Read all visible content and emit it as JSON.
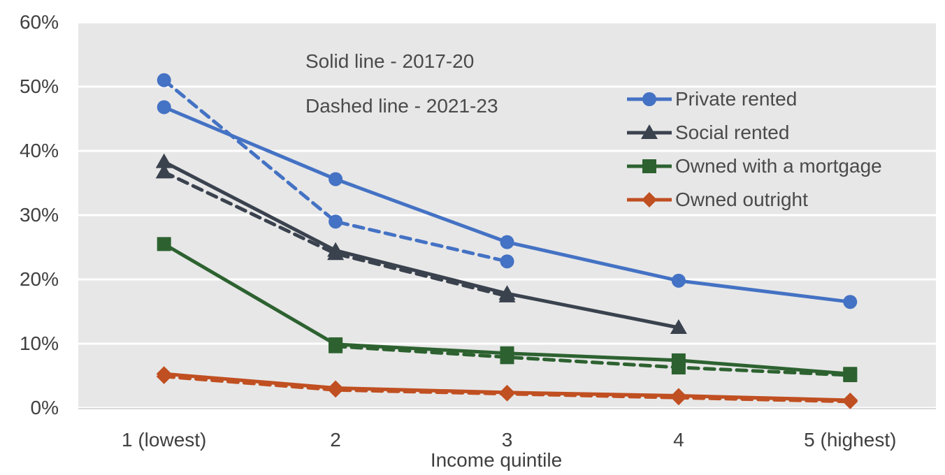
{
  "colors": {
    "plot_bg": "#E7E7E7",
    "gridline": "#FFFFFF",
    "axis_line": "#D9D9D9",
    "text": "#404040"
  },
  "chart_data": {
    "type": "line",
    "title": "",
    "xlabel": "Income quintile",
    "ylabel": "",
    "ylim": [
      0,
      60
    ],
    "ytick_step": 10,
    "ytick_labels": [
      "0%",
      "10%",
      "20%",
      "30%",
      "40%",
      "50%",
      "60%"
    ],
    "categories": [
      "1 (lowest)",
      "2",
      "3",
      "4",
      "5 (highest)"
    ],
    "grid": "horizontal-white-on-gray",
    "legend_position": "inside-top-right",
    "annotations": [
      {
        "text": "Solid line - 2017-20"
      },
      {
        "text": "Dashed line - 2021-23"
      }
    ],
    "series": [
      {
        "name": "Private rented",
        "color": "#4472C4",
        "marker": "circle",
        "lines": [
          {
            "style": "solid",
            "period": "2017-20",
            "values": [
              46.8,
              35.6,
              25.8,
              19.8,
              16.5
            ]
          },
          {
            "style": "dashed",
            "period": "2021-23",
            "values": [
              51.0,
              29.0,
              22.8,
              null,
              null
            ]
          }
        ]
      },
      {
        "name": "Social rented",
        "color": "#3A424E",
        "marker": "triangle",
        "lines": [
          {
            "style": "solid",
            "period": "2017-20",
            "values": [
              38.3,
              24.5,
              17.8,
              12.5,
              null
            ]
          },
          {
            "style": "dashed",
            "period": "2021-23",
            "values": [
              36.7,
              24.0,
              17.4,
              null,
              null
            ]
          }
        ]
      },
      {
        "name": "Owned with a mortgage",
        "color": "#2D6230",
        "marker": "square",
        "lines": [
          {
            "style": "solid",
            "period": "2017-20",
            "values": [
              25.5,
              9.9,
              8.5,
              7.4,
              5.3
            ]
          },
          {
            "style": "dashed",
            "period": "2021-23",
            "values": [
              null,
              9.6,
              7.9,
              6.3,
              5.1
            ]
          }
        ]
      },
      {
        "name": "Owned outright",
        "color": "#C04F21",
        "marker": "diamond",
        "lines": [
          {
            "style": "solid",
            "period": "2017-20",
            "values": [
              5.3,
              3.1,
              2.4,
              1.9,
              1.2
            ]
          },
          {
            "style": "dashed",
            "period": "2021-23",
            "values": [
              4.9,
              2.8,
              2.2,
              1.6,
              1.0
            ]
          }
        ]
      }
    ]
  }
}
